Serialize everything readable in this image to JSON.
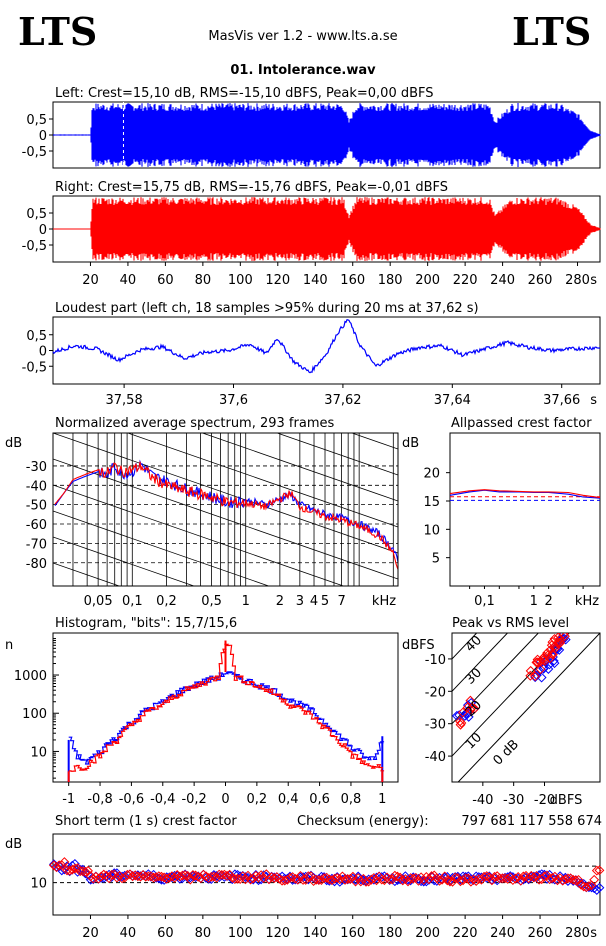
{
  "header": {
    "logo_left": "LTS",
    "logo_right": "LTS",
    "app_title": "MasVis ver 1.2 - www.lts.a.se",
    "file_name": "01. Intolerance.wav"
  },
  "chart_data": [
    {
      "id": "left",
      "type": "area",
      "title": "Left: Crest=15,10 dB, RMS=-15,10 dBFS, Peak=0,00 dBFS",
      "y_ticks": [
        "0,5",
        "0",
        "-0,5"
      ],
      "ylim": [
        -1,
        1
      ],
      "xlim": [
        0,
        292
      ],
      "color": "#0000ff",
      "envelope": {
        "x": [
          0,
          20,
          21,
          80,
          155,
          158,
          162,
          233,
          236,
          245,
          270,
          280,
          287,
          292
        ],
        "y": [
          0.02,
          0.02,
          1.0,
          1.0,
          1.0,
          0.45,
          1.0,
          1.0,
          0.45,
          1.0,
          1.0,
          0.7,
          0.15,
          0.03
        ]
      },
      "marker_x": 37.62
    },
    {
      "id": "right",
      "type": "area",
      "title": "Right: Crest=15,75 dB, RMS=-15,76 dBFS, Peak=-0,01 dBFS",
      "y_ticks": [
        "0,5",
        "0",
        "-0,5"
      ],
      "ylim": [
        -1,
        1
      ],
      "xlim": [
        0,
        292
      ],
      "color": "#ff0000",
      "x_ticks": [
        "20",
        "40",
        "60",
        "80",
        "100",
        "120",
        "140",
        "160",
        "180",
        "200",
        "220",
        "240",
        "260",
        "280",
        "s"
      ],
      "envelope": {
        "x": [
          0,
          20,
          21,
          80,
          155,
          158,
          162,
          233,
          236,
          245,
          270,
          280,
          287,
          292
        ],
        "y": [
          0.0,
          0.0,
          1.0,
          1.0,
          1.0,
          0.45,
          1.0,
          1.0,
          0.45,
          1.0,
          1.0,
          0.7,
          0.15,
          0.03
        ]
      }
    },
    {
      "id": "loudest",
      "type": "line",
      "title": "Loudest part (left  ch, 18 samples >95% during 20 ms at 37,62 s)",
      "y_ticks": [
        "0,5",
        "0",
        "-0,5"
      ],
      "ylim": [
        -1,
        1
      ],
      "xlim": [
        37.567,
        37.667
      ],
      "x_ticks": [
        "37,58",
        "37,6",
        "37,62",
        "37,64",
        "37,66",
        "s"
      ],
      "color": "#0000ff",
      "x": [
        37.567,
        37.571,
        37.575,
        37.579,
        37.583,
        37.587,
        37.591,
        37.595,
        37.599,
        37.603,
        37.606,
        37.608,
        37.611,
        37.614,
        37.617,
        37.619,
        37.621,
        37.623,
        37.626,
        37.63,
        37.634,
        37.638,
        37.642,
        37.646,
        37.65,
        37.654,
        37.658,
        37.662,
        37.667
      ],
      "y": [
        -0.05,
        0.15,
        0.05,
        -0.3,
        0.02,
        0.12,
        -0.25,
        -0.05,
        0.0,
        0.2,
        -0.1,
        0.4,
        -0.35,
        -0.7,
        -0.1,
        0.55,
        1.0,
        0.2,
        -0.5,
        -0.1,
        0.1,
        0.15,
        -0.15,
        0.05,
        0.25,
        0.1,
        0.0,
        0.05,
        0.1
      ]
    },
    {
      "id": "spectrum",
      "type": "line",
      "title": "Normalized average spectrum, 293 frames",
      "ylabel": "dB",
      "y_ticks": [
        "-30",
        "-40",
        "-50",
        "-60",
        "-70",
        "-80"
      ],
      "ylim": [
        -92,
        -13
      ],
      "xlim": [
        0.02,
        22
      ],
      "x_ticks": [
        "0,05",
        "0,1",
        "0,2",
        "0,5",
        "1",
        "2",
        "3",
        "4",
        "5",
        "7",
        "kHz"
      ],
      "series": [
        {
          "color": "#0000ff",
          "x": [
            0.02,
            0.025,
            0.03,
            0.04,
            0.05,
            0.06,
            0.07,
            0.08,
            0.1,
            0.12,
            0.15,
            0.2,
            0.3,
            0.5,
            0.7,
            1,
            1.5,
            2,
            2.5,
            3,
            4,
            5,
            7,
            10,
            15,
            20,
            22
          ],
          "y": [
            -52,
            -44,
            -38,
            -35,
            -33,
            -35,
            -30,
            -34,
            -33,
            -29,
            -35,
            -38,
            -42,
            -46,
            -49,
            -48,
            -50,
            -47,
            -45,
            -50,
            -53,
            -55,
            -57,
            -60,
            -65,
            -73,
            -80
          ]
        },
        {
          "color": "#ff0000",
          "x": [
            0.02,
            0.025,
            0.03,
            0.04,
            0.05,
            0.06,
            0.07,
            0.08,
            0.1,
            0.12,
            0.15,
            0.2,
            0.3,
            0.5,
            0.7,
            1,
            1.5,
            2,
            2.5,
            3,
            4,
            5,
            7,
            10,
            15,
            20,
            22
          ],
          "y": [
            -51,
            -44,
            -37,
            -34,
            -32,
            -34,
            -30,
            -33,
            -32,
            -30,
            -36,
            -40,
            -43,
            -46,
            -49,
            -49,
            -51,
            -47,
            -44,
            -51,
            -54,
            -56,
            -58,
            -61,
            -66,
            -75,
            -84
          ]
        }
      ]
    },
    {
      "id": "crest",
      "type": "line",
      "title": "Allpassed crest factor",
      "ylabel": "dB",
      "y_ticks": [
        "20",
        "15",
        "10",
        "5"
      ],
      "ylim": [
        0,
        27
      ],
      "xlim": [
        0.02,
        22
      ],
      "x_ticks": [
        "0,1",
        "1",
        "2",
        "kHz"
      ],
      "series": [
        {
          "color": "#0000ff",
          "x": [
            0.02,
            0.05,
            0.1,
            0.2,
            0.5,
            1,
            2,
            5,
            10,
            22
          ],
          "y": [
            16.0,
            16.6,
            16.9,
            16.6,
            16.6,
            16.5,
            16.5,
            16.2,
            15.7,
            15.5
          ]
        },
        {
          "color": "#ff0000",
          "x": [
            0.02,
            0.05,
            0.1,
            0.2,
            0.5,
            1,
            2,
            5,
            10,
            22
          ],
          "y": [
            16.3,
            16.8,
            17.0,
            16.8,
            16.7,
            16.6,
            16.6,
            16.5,
            16.0,
            15.6
          ]
        }
      ],
      "ref_lines": [
        {
          "color": "#0000ff",
          "y": 15.1
        },
        {
          "color": "#ff0000",
          "y": 15.75
        }
      ]
    },
    {
      "id": "histogram",
      "type": "line",
      "title": "Histogram, \"bits\": 15,7/15,6",
      "ylabel": "n",
      "y_ticks": [
        "1000",
        "100",
        "10"
      ],
      "xlim": [
        -1.1,
        1.1
      ],
      "x_ticks": [
        "-1",
        "-0,8",
        "-0,6",
        "-0,4",
        "-0,2",
        "0",
        "0,2",
        "0,4",
        "0,6",
        "0,8",
        "1"
      ],
      "series": [
        {
          "color": "#0000ff",
          "x": [
            -1.0,
            -0.96,
            -0.9,
            -0.8,
            -0.7,
            -0.6,
            -0.4,
            -0.2,
            -0.05,
            0,
            0.05,
            0.2,
            0.4,
            0.6,
            0.7,
            0.8,
            0.9,
            0.96,
            1.0
          ],
          "y": [
            20,
            8,
            5,
            10,
            25,
            60,
            200,
            550,
            900,
            1200,
            900,
            560,
            220,
            70,
            28,
            12,
            6,
            8,
            25
          ]
        },
        {
          "color": "#ff0000",
          "x": [
            -1.0,
            -0.96,
            -0.9,
            -0.8,
            -0.7,
            -0.6,
            -0.4,
            -0.2,
            -0.05,
            0,
            0.05,
            0.2,
            0.4,
            0.6,
            0.7,
            0.8,
            0.9,
            0.96,
            1.0
          ],
          "y": [
            3,
            4,
            4,
            8,
            20,
            50,
            170,
            500,
            900,
            8000,
            900,
            500,
            170,
            50,
            20,
            8,
            4,
            4,
            3
          ]
        }
      ]
    },
    {
      "id": "peak_vs_rms",
      "type": "scatter",
      "title": "Peak vs RMS level",
      "ylabel": "dBFS",
      "xlabel": "dBFS",
      "y_ticks": [
        "-10",
        "-20",
        "-30",
        "-40"
      ],
      "x_ticks": [
        "-40",
        "-30",
        "-20"
      ],
      "xlim": [
        -50,
        -2
      ],
      "ylim": [
        -48,
        -2
      ],
      "diag_labels": [
        "40",
        "30",
        "20",
        "10",
        "0 dB"
      ],
      "series": [
        {
          "color": "#0000ff",
          "x": [
            -47,
            -45,
            -44,
            -22,
            -21,
            -20,
            -19,
            -18,
            -17,
            -16,
            -15,
            -14
          ],
          "y": [
            -28,
            -27,
            -25,
            -15,
            -13,
            -12,
            -11,
            -10,
            -8,
            -6,
            -5,
            -4
          ]
        },
        {
          "color": "#ff0000",
          "x": [
            -46,
            -45,
            -43,
            -24,
            -22,
            -21,
            -20,
            -19,
            -18,
            -17,
            -16,
            -15,
            -14
          ],
          "y": [
            -30,
            -26,
            -24,
            -14,
            -12,
            -11,
            -10,
            -9,
            -8,
            -7,
            -5,
            -4,
            -3
          ]
        }
      ]
    },
    {
      "id": "short_crest",
      "type": "scatter",
      "title": "Short term (1 s) crest factor",
      "checksum_label": "Checksum (energy):",
      "checksum_value": "797 681 117 558 674",
      "ylabel": "dB",
      "y_ticks": [
        "10"
      ],
      "xlim": [
        0,
        292
      ],
      "ylim": [
        0,
        25
      ],
      "x_ticks": [
        "20",
        "40",
        "60",
        "80",
        "100",
        "120",
        "140",
        "160",
        "180",
        "200",
        "220",
        "240",
        "260",
        "280",
        "s"
      ],
      "ref_lines": [
        15.1,
        10.0
      ],
      "series": [
        {
          "color": "#0000ff",
          "x": [
            1,
            3,
            5,
            7,
            9,
            11,
            13,
            15,
            17,
            21,
            30,
            40,
            50,
            60,
            70,
            80,
            90,
            100,
            110,
            120,
            130,
            140,
            150,
            160,
            170,
            180,
            190,
            200,
            210,
            220,
            230,
            240,
            250,
            260,
            270,
            275,
            280,
            283,
            286,
            289
          ],
          "y": [
            15,
            16,
            14,
            15,
            13,
            16,
            14,
            15,
            13,
            11,
            12,
            12.5,
            12,
            11.5,
            12,
            12,
            11.5,
            12,
            11.5,
            12,
            11,
            11.5,
            11,
            11,
            11.5,
            11,
            11.5,
            11,
            11,
            11.5,
            11,
            11.5,
            11,
            12,
            11.5,
            11,
            10.5,
            9.5,
            9,
            8
          ]
        },
        {
          "color": "#ff0000",
          "x": [
            2,
            4,
            6,
            8,
            10,
            12,
            14,
            16,
            18,
            22,
            32,
            42,
            52,
            62,
            72,
            82,
            92,
            102,
            112,
            122,
            132,
            142,
            152,
            162,
            172,
            182,
            192,
            202,
            212,
            222,
            232,
            242,
            252,
            262,
            272,
            277,
            281,
            284,
            287,
            291
          ],
          "y": [
            15.5,
            14.5,
            16,
            14,
            15,
            13.5,
            14.5,
            13,
            14,
            11.5,
            12,
            12,
            11.5,
            12,
            11.5,
            12,
            12,
            11.5,
            12,
            11,
            11.5,
            11,
            11.5,
            11,
            11,
            11.5,
            11,
            11.5,
            11,
            11,
            11.5,
            11,
            11.5,
            11.5,
            11,
            11.5,
            10,
            9.5,
            8.5,
            14
          ]
        }
      ]
    }
  ]
}
